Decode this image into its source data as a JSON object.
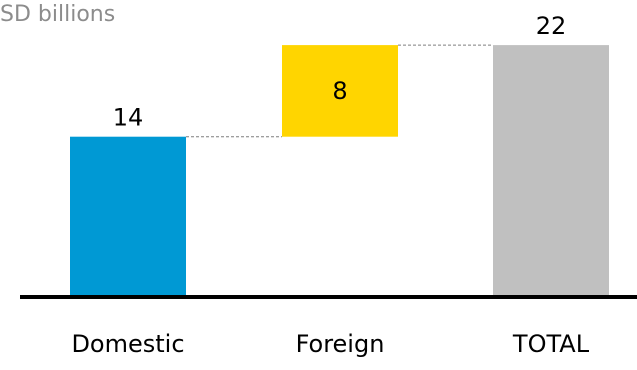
{
  "chart_data": {
    "type": "bar",
    "subtype": "waterfall",
    "unit_label": "SD billions",
    "categories": [
      "Domestic",
      "Foreign",
      "TOTAL"
    ],
    "values": [
      14,
      8,
      22
    ],
    "bar_kinds": [
      "increase",
      "increase",
      "total"
    ],
    "data_labels": [
      "14",
      "8",
      "22"
    ],
    "ylim": [
      0,
      22
    ],
    "grid": false,
    "connectors": true,
    "colors": {
      "Domestic": "#0099d4",
      "Foreign": "#ffd500",
      "TOTAL": "#c0c0c0",
      "axis": "#000000",
      "connector": "#7f7f7f",
      "unit_label": "#8c8c8c"
    }
  }
}
